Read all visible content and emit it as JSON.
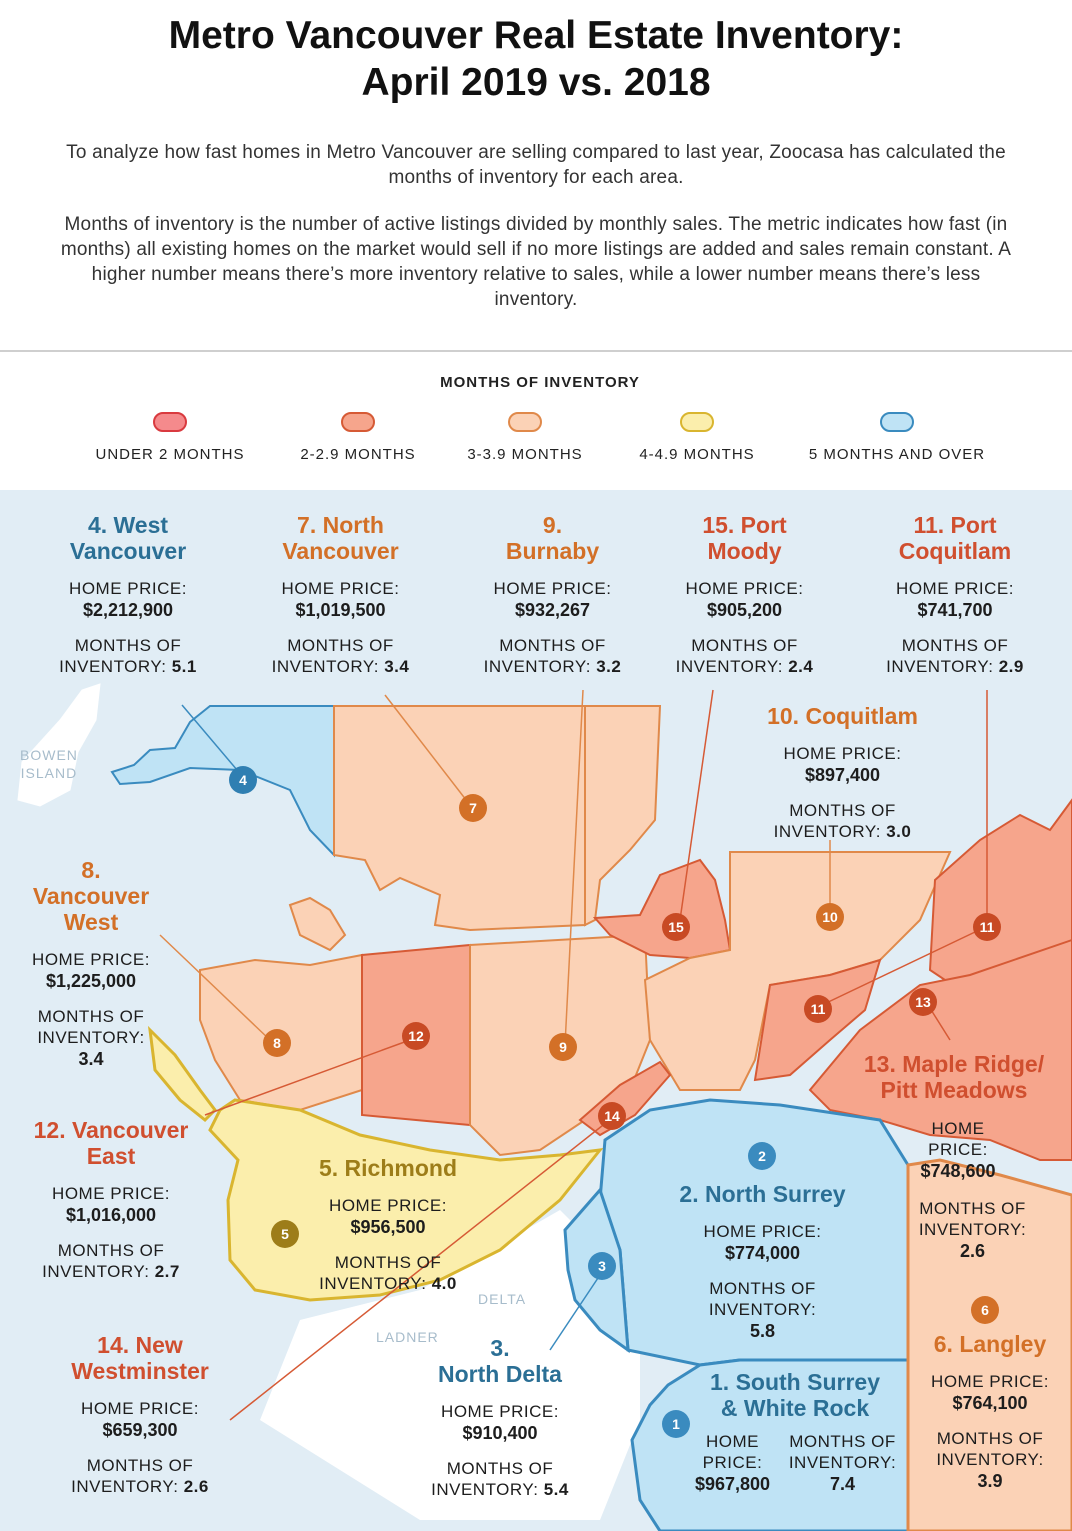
{
  "title_line1": "Metro Vancouver Real Estate Inventory:",
  "title_line2": "April 2019 vs. 2018",
  "intro_para1": "To analyze how fast homes in Metro Vancouver are selling compared to last year, Zoocasa has calculated the months of inventory for each area.",
  "intro_para2": "Months of inventory is the number of active listings divided by monthly sales. The metric indicates how fast (in months) all existing homes on the market would sell if no more listings are added and sales remain constant. A higher number means there’s more inventory relative to sales, while a lower number means there’s less inventory.",
  "legend": {
    "title": "MONTHS OF INVENTORY",
    "items": [
      {
        "label": "UNDER 2 MONTHS",
        "fill": "#f58a8c",
        "stroke": "#d93a3f"
      },
      {
        "label": "2-2.9 MONTHS",
        "fill": "#f6a58c",
        "stroke": "#d65a35"
      },
      {
        "label": "3-3.9 MONTHS",
        "fill": "#fbd2b6",
        "stroke": "#e0894a"
      },
      {
        "label": "4-4.9 MONTHS",
        "fill": "#fbeeac",
        "stroke": "#d9b52f"
      },
      {
        "label": "5 MONTHS AND OVER",
        "fill": "#bfe3f5",
        "stroke": "#3a8bbf"
      }
    ]
  },
  "captions": {
    "home_price": "HOME PRICE:",
    "months": "MONTHS OF INVENTORY:",
    "months_a": "MONTHS OF",
    "months_b": "INVENTORY:",
    "home": "HOME",
    "price": "PRICE:"
  },
  "places": {
    "bowen_a": "BOWEN",
    "bowen_b": "ISLAND",
    "delta": "DELTA",
    "ladner": "LADNER"
  },
  "regions": [
    {
      "num": "1",
      "name_a": "1. South Surrey",
      "name_b": "& White Rock",
      "price": "$967,800",
      "months": "7.4"
    },
    {
      "num": "2",
      "name_a": "2. North Surrey",
      "price": "$774,000",
      "months": "5.8"
    },
    {
      "num": "3",
      "name_a": "3.",
      "name_b": "North Delta",
      "price": "$910,400",
      "months": "5.4"
    },
    {
      "num": "4",
      "name_a": "4. West",
      "name_b": "Vancouver",
      "price": "$2,212,900",
      "months": "5.1"
    },
    {
      "num": "5",
      "name_a": "5. Richmond",
      "price": "$956,500",
      "months": "4.0"
    },
    {
      "num": "6",
      "name_a": "6. Langley",
      "price": "$764,100",
      "months": "3.9"
    },
    {
      "num": "7",
      "name_a": "7. North",
      "name_b": "Vancouver",
      "price": "$1,019,500",
      "months": "3.4"
    },
    {
      "num": "8",
      "name_a": "8.",
      "name_b": "Vancouver",
      "name_c": "West",
      "price": "$1,225,000",
      "months": "3.4"
    },
    {
      "num": "9",
      "name_a": "9.",
      "name_b": "Burnaby",
      "price": "$932,267",
      "months": "3.2"
    },
    {
      "num": "10",
      "name_a": "10. Coquitlam",
      "price": "$897,400",
      "months": "3.0"
    },
    {
      "num": "11",
      "name_a": "11. Port",
      "name_b": "Coquitlam",
      "price": "$741,700",
      "months": "2.9"
    },
    {
      "num": "12",
      "name_a": "12. Vancouver",
      "name_b": "East",
      "price": "$1,016,000",
      "months": "2.7"
    },
    {
      "num": "13",
      "name_a": "13. Maple Ridge/",
      "name_b": "Pitt Meadows",
      "price": "$748,600",
      "months": "2.6"
    },
    {
      "num": "14",
      "name_a": "14. New",
      "name_b": "Westminster",
      "price": "$659,300",
      "months": "2.6"
    },
    {
      "num": "15",
      "name_a": "15. Port",
      "name_b": "Moody",
      "price": "$905,200",
      "months": "2.4"
    }
  ]
}
